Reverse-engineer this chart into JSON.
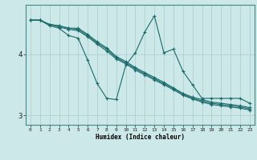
{
  "bg_color": "#cce8e8",
  "line_color": "#1a6b6b",
  "grid_color": "#aacccc",
  "xlabel": "Humidex (Indice chaleur)",
  "xlim": [
    -0.5,
    23.5
  ],
  "ylim": [
    2.85,
    4.8
  ],
  "yticks": [
    3,
    4
  ],
  "xticks": [
    0,
    1,
    2,
    3,
    4,
    5,
    6,
    7,
    8,
    9,
    10,
    11,
    12,
    13,
    14,
    15,
    16,
    17,
    18,
    19,
    20,
    21,
    22,
    23
  ],
  "line1_y": [
    4.55,
    4.55,
    4.48,
    4.46,
    4.42,
    4.42,
    4.32,
    4.2,
    4.1,
    3.96,
    3.88,
    3.78,
    3.7,
    3.62,
    3.54,
    3.45,
    3.36,
    3.3,
    3.26,
    3.22,
    3.2,
    3.18,
    3.16,
    3.13
  ],
  "line2_y": [
    4.55,
    4.55,
    4.48,
    4.46,
    4.42,
    4.4,
    4.3,
    4.18,
    4.08,
    3.94,
    3.86,
    3.76,
    3.68,
    3.6,
    3.52,
    3.44,
    3.35,
    3.28,
    3.24,
    3.2,
    3.18,
    3.16,
    3.14,
    3.11
  ],
  "line3_y": [
    4.55,
    4.55,
    4.48,
    4.44,
    4.4,
    4.38,
    4.28,
    4.16,
    4.05,
    3.92,
    3.84,
    3.74,
    3.66,
    3.58,
    3.5,
    3.42,
    3.33,
    3.27,
    3.22,
    3.18,
    3.16,
    3.14,
    3.12,
    3.09
  ],
  "line4_y": [
    4.55,
    4.55,
    4.46,
    4.42,
    4.3,
    4.26,
    3.9,
    3.52,
    3.28,
    3.26,
    3.82,
    4.02,
    4.36,
    4.62,
    4.02,
    4.08,
    3.72,
    3.5,
    3.28,
    3.28,
    3.28,
    3.28,
    3.28,
    3.2
  ]
}
